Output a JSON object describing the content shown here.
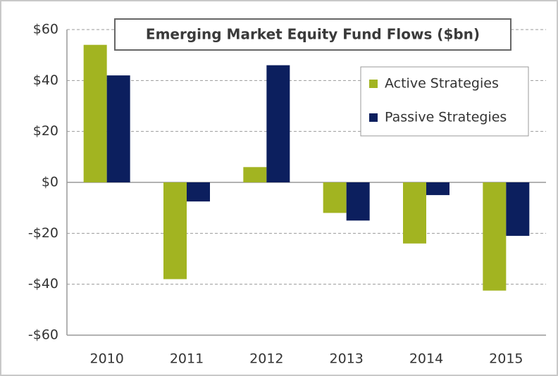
{
  "chart_data": {
    "type": "bar",
    "title": "Emerging Market Equity Fund Flows ($bn)",
    "categories": [
      "2010",
      "2011",
      "2012",
      "2013",
      "2014",
      "2015"
    ],
    "series": [
      {
        "name": "Active Strategies",
        "color": "#a2b421",
        "values": [
          54,
          -38,
          6,
          -12,
          -24,
          -42.5
        ]
      },
      {
        "name": "Passive Strategies",
        "color": "#0c1f5e",
        "values": [
          42,
          -7.5,
          46,
          -15,
          -5,
          -21
        ]
      }
    ],
    "ylim": [
      -60,
      60
    ],
    "yticks": [
      {
        "value": -60,
        "label": "-$60"
      },
      {
        "value": -40,
        "label": "-$40"
      },
      {
        "value": -20,
        "label": "-$20"
      },
      {
        "value": 0,
        "label": "$0"
      },
      {
        "value": 20,
        "label": "$20"
      },
      {
        "value": 40,
        "label": "$40"
      },
      {
        "value": 60,
        "label": "$60"
      }
    ],
    "grid": true,
    "legend": "upper right"
  }
}
